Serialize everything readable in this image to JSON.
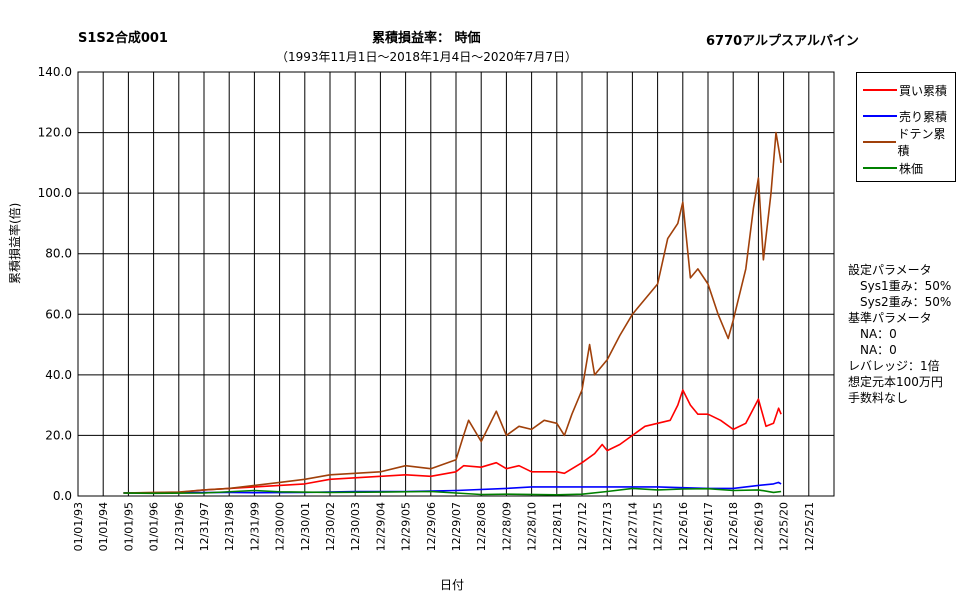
{
  "header": {
    "left": "S1S2合成001",
    "center": "累積損益率：  時価",
    "subtitle": "（1993年11月1日〜2018年1月4日〜2020年7月7日）",
    "right": "6770アルプスアルパイン"
  },
  "legend": [
    {
      "label": "買い累積",
      "color": "#ff0000"
    },
    {
      "label": "売り累積",
      "color": "#0000ff"
    },
    {
      "label": "ドテン累積",
      "color": "#a0400a"
    },
    {
      "label": "株価",
      "color": "#008000"
    }
  ],
  "params": [
    "設定パラメータ",
    "　Sys1重み：50%",
    "　Sys2重み：50%",
    "基準パラメータ",
    "　NA：0",
    "　NA：0",
    "レバレッジ：1倍",
    "想定元本100万円",
    "手数料なし"
  ],
  "chart_data": {
    "type": "line",
    "xlabel": "日付",
    "ylabel": "累積損益率(倍)",
    "ylim": [
      0,
      140
    ],
    "yticks": [
      0,
      20,
      40,
      60,
      80,
      100,
      120,
      140
    ],
    "ytick_labels": [
      "0.0",
      "20.0",
      "40.0",
      "60.0",
      "80.0",
      "100.0",
      "120.0",
      "140.0"
    ],
    "xticks": [
      "01/01/93",
      "01/01/94",
      "01/01/95",
      "01/01/96",
      "12/31/96",
      "12/31/97",
      "12/31/98",
      "12/31/99",
      "12/30/00",
      "12/30/01",
      "12/30/02",
      "12/30/03",
      "12/29/04",
      "12/29/05",
      "12/29/06",
      "12/29/07",
      "12/28/08",
      "12/28/09",
      "12/28/10",
      "12/28/11",
      "12/27/12",
      "12/27/13",
      "12/27/14",
      "12/27/15",
      "12/26/16",
      "12/26/17",
      "12/26/18",
      "12/26/19",
      "12/25/20",
      "12/25/21"
    ],
    "grid": true,
    "legend_position": "right",
    "series": [
      {
        "name": "買い累積",
        "color": "#ff0000",
        "points": [
          [
            1994.8,
            1
          ],
          [
            1997,
            1.2
          ],
          [
            1998,
            2
          ],
          [
            1999,
            2.5
          ],
          [
            2000,
            3
          ],
          [
            2001,
            3.5
          ],
          [
            2002,
            4
          ],
          [
            2003,
            5.5
          ],
          [
            2004,
            6
          ],
          [
            2005,
            6.5
          ],
          [
            2006,
            7
          ],
          [
            2007,
            6.5
          ],
          [
            2008,
            8
          ],
          [
            2008.3,
            10
          ],
          [
            2009,
            9.5
          ],
          [
            2009.6,
            11
          ],
          [
            2010,
            9
          ],
          [
            2010.5,
            10
          ],
          [
            2011,
            8
          ],
          [
            2012,
            8
          ],
          [
            2012.3,
            7.5
          ],
          [
            2013,
            11
          ],
          [
            2013.5,
            14
          ],
          [
            2013.8,
            17
          ],
          [
            2014,
            15
          ],
          [
            2014.5,
            17
          ],
          [
            2015,
            20
          ],
          [
            2015.5,
            23
          ],
          [
            2016,
            24
          ],
          [
            2016.5,
            25
          ],
          [
            2016.8,
            30
          ],
          [
            2017,
            35
          ],
          [
            2017.3,
            30
          ],
          [
            2017.6,
            27
          ],
          [
            2018,
            27
          ],
          [
            2018.5,
            25
          ],
          [
            2019,
            22
          ],
          [
            2019.5,
            24
          ],
          [
            2020,
            32
          ],
          [
            2020.3,
            23
          ],
          [
            2020.6,
            24
          ],
          [
            2020.8,
            29
          ],
          [
            2020.9,
            27
          ]
        ]
      },
      {
        "name": "売り累積",
        "color": "#0000ff",
        "points": [
          [
            1994.8,
            1
          ],
          [
            1997,
            1.1
          ],
          [
            1999,
            1.2
          ],
          [
            2000,
            1.1
          ],
          [
            2002,
            1.2
          ],
          [
            2004,
            1.5
          ],
          [
            2006,
            1.5
          ],
          [
            2008,
            1.8
          ],
          [
            2010,
            2.5
          ],
          [
            2011,
            3
          ],
          [
            2013,
            3
          ],
          [
            2015,
            3
          ],
          [
            2016,
            3
          ],
          [
            2018,
            2.5
          ],
          [
            2019,
            2.5
          ],
          [
            2020,
            3.5
          ],
          [
            2020.6,
            4
          ],
          [
            2020.8,
            4.5
          ],
          [
            2020.9,
            4
          ]
        ]
      },
      {
        "name": "ドテン累積",
        "color": "#a0400a",
        "points": [
          [
            1994.8,
            1
          ],
          [
            1997,
            1.3
          ],
          [
            1998,
            2
          ],
          [
            1999,
            2.5
          ],
          [
            2000,
            3.5
          ],
          [
            2001,
            4.5
          ],
          [
            2002,
            5.5
          ],
          [
            2003,
            7
          ],
          [
            2004,
            7.5
          ],
          [
            2005,
            8
          ],
          [
            2006,
            10
          ],
          [
            2007,
            9
          ],
          [
            2008,
            12
          ],
          [
            2008.3,
            20
          ],
          [
            2008.5,
            25
          ],
          [
            2009,
            18
          ],
          [
            2009.6,
            28
          ],
          [
            2010,
            20
          ],
          [
            2010.5,
            23
          ],
          [
            2011,
            22
          ],
          [
            2011.5,
            25
          ],
          [
            2012,
            24
          ],
          [
            2012.3,
            20
          ],
          [
            2012.6,
            27
          ],
          [
            2013,
            35
          ],
          [
            2013.3,
            50
          ],
          [
            2013.5,
            40
          ],
          [
            2014,
            45
          ],
          [
            2014.5,
            53
          ],
          [
            2015,
            60
          ],
          [
            2015.5,
            65
          ],
          [
            2016,
            70
          ],
          [
            2016.4,
            85
          ],
          [
            2016.8,
            90
          ],
          [
            2017,
            97
          ],
          [
            2017.3,
            72
          ],
          [
            2017.6,
            75
          ],
          [
            2018,
            70
          ],
          [
            2018.4,
            60
          ],
          [
            2018.8,
            52
          ],
          [
            2019,
            58
          ],
          [
            2019.5,
            75
          ],
          [
            2019.8,
            95
          ],
          [
            2020,
            105
          ],
          [
            2020.2,
            78
          ],
          [
            2020.5,
            100
          ],
          [
            2020.7,
            120
          ],
          [
            2020.9,
            110
          ]
        ]
      },
      {
        "name": "株価",
        "color": "#008000",
        "points": [
          [
            1994.8,
            1
          ],
          [
            1996,
            0.9
          ],
          [
            1998,
            1
          ],
          [
            2000,
            1.8
          ],
          [
            2001,
            1.4
          ],
          [
            2003,
            1.2
          ],
          [
            2005,
            1.3
          ],
          [
            2007,
            1.5
          ],
          [
            2008,
            1
          ],
          [
            2009,
            0.5
          ],
          [
            2010,
            0.6
          ],
          [
            2012,
            0.4
          ],
          [
            2013,
            0.6
          ],
          [
            2014,
            1.5
          ],
          [
            2015,
            2.5
          ],
          [
            2016,
            2
          ],
          [
            2017,
            2.3
          ],
          [
            2018,
            2.4
          ],
          [
            2019,
            1.8
          ],
          [
            2020,
            2
          ],
          [
            2020.6,
            1.2
          ],
          [
            2020.9,
            1.5
          ]
        ]
      }
    ]
  }
}
